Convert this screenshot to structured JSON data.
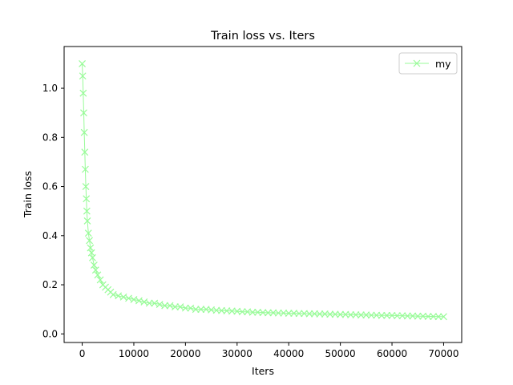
{
  "chart_data": {
    "type": "scatter",
    "title": "Train loss  vs. Iters",
    "xlabel": "Iters",
    "ylabel": "Train loss",
    "xlim": [
      -3500,
      73500
    ],
    "ylim": [
      -0.035,
      1.17
    ],
    "xticks": [
      0,
      10000,
      20000,
      30000,
      40000,
      50000,
      60000,
      70000
    ],
    "yticks": [
      0.0,
      0.2,
      0.4,
      0.6,
      0.8,
      1.0
    ],
    "xtick_labels": [
      "0",
      "10000",
      "20000",
      "30000",
      "40000",
      "50000",
      "60000",
      "70000"
    ],
    "ytick_labels": [
      "0.0",
      "0.2",
      "0.4",
      "0.6",
      "0.8",
      "1.0"
    ],
    "legend_position": "top-right",
    "grid": false,
    "series": [
      {
        "name": "my",
        "color": "#98fb98",
        "marker": "x",
        "x": [
          0,
          100,
          200,
          300,
          400,
          500,
          600,
          700,
          800,
          900,
          1000,
          1200,
          1400,
          1600,
          1800,
          2000,
          2300,
          2600,
          3000,
          3500,
          4000,
          4500,
          5000,
          5500,
          6000,
          7000,
          8000,
          9000,
          10000,
          11000,
          12000,
          13000,
          14000,
          15000,
          16000,
          17000,
          18000,
          19000,
          20000,
          21000,
          22000,
          23000,
          24000,
          25000,
          26000,
          27000,
          28000,
          29000,
          30000,
          31000,
          32000,
          33000,
          34000,
          35000,
          36000,
          37000,
          38000,
          39000,
          40000,
          41000,
          42000,
          43000,
          44000,
          45000,
          46000,
          47000,
          48000,
          49000,
          50000,
          51000,
          52000,
          53000,
          54000,
          55000,
          56000,
          57000,
          58000,
          59000,
          60000,
          61000,
          62000,
          63000,
          64000,
          65000,
          66000,
          67000,
          68000,
          69000,
          70000
        ],
        "y": [
          1.1,
          1.05,
          0.98,
          0.9,
          0.82,
          0.74,
          0.67,
          0.6,
          0.55,
          0.5,
          0.46,
          0.41,
          0.38,
          0.35,
          0.33,
          0.31,
          0.28,
          0.26,
          0.24,
          0.22,
          0.2,
          0.19,
          0.18,
          0.17,
          0.16,
          0.155,
          0.15,
          0.145,
          0.14,
          0.135,
          0.13,
          0.125,
          0.125,
          0.12,
          0.115,
          0.115,
          0.11,
          0.11,
          0.105,
          0.105,
          0.1,
          0.1,
          0.1,
          0.098,
          0.096,
          0.095,
          0.094,
          0.093,
          0.092,
          0.09,
          0.09,
          0.088,
          0.088,
          0.087,
          0.086,
          0.086,
          0.085,
          0.085,
          0.084,
          0.084,
          0.083,
          0.083,
          0.082,
          0.082,
          0.081,
          0.081,
          0.08,
          0.08,
          0.079,
          0.079,
          0.078,
          0.078,
          0.077,
          0.077,
          0.076,
          0.076,
          0.075,
          0.075,
          0.075,
          0.074,
          0.074,
          0.073,
          0.073,
          0.072,
          0.072,
          0.071,
          0.071,
          0.07,
          0.07
        ]
      }
    ]
  }
}
